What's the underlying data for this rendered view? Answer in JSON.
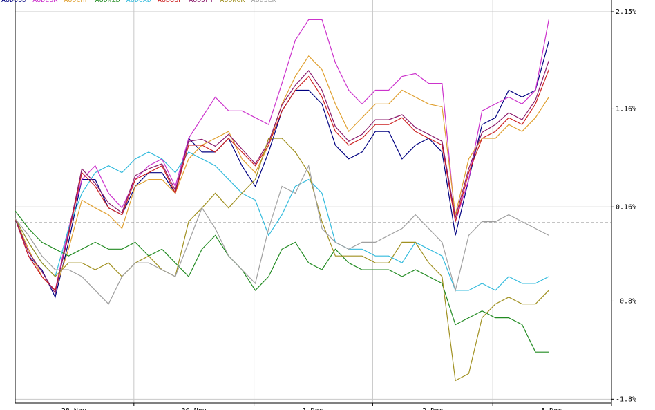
{
  "chart_data": {
    "type": "line",
    "xlim": [
      0,
      44.7
    ],
    "ylim": [
      -1.84,
      2.27
    ],
    "yticks": [
      {
        "value": 2.15,
        "label": "2.15%"
      },
      {
        "value": 1.16,
        "label": "1.16%"
      },
      {
        "value": 0.16,
        "label": "0.16%"
      },
      {
        "value": -0.8,
        "label": "-0.8%"
      },
      {
        "value": -1.8,
        "label": "-1.8%"
      }
    ],
    "xticks": [
      {
        "value": 8.9,
        "label": "28 Nov"
      },
      {
        "value": 17.9,
        "label": "30 Nov"
      },
      {
        "value": 26.8,
        "label": "1 Dec"
      },
      {
        "value": 35.8,
        "label": "2 Dec"
      },
      {
        "value": 44.7,
        "label": "5 Dec"
      }
    ],
    "grid": true,
    "baseline": 0,
    "series": [
      {
        "name": "AUDUSD",
        "color": "#000080",
        "values": [
          0.04,
          -0.34,
          -0.48,
          -0.76,
          -0.2,
          0.44,
          0.44,
          0.15,
          0.08,
          0.37,
          0.51,
          0.51,
          0.3,
          0.86,
          0.72,
          0.72,
          0.86,
          0.58,
          0.37,
          0.72,
          1.14,
          1.35,
          1.35,
          1.21,
          0.79,
          0.65,
          0.72,
          0.93,
          0.93,
          0.65,
          0.79,
          0.86,
          0.72,
          -0.13,
          0.44,
          1.0,
          1.07,
          1.35,
          1.28,
          1.35,
          1.85
        ]
      },
      {
        "name": "AUDEUR",
        "color": "#cc33cc",
        "values": [
          0.04,
          -0.34,
          -0.55,
          -0.69,
          -0.06,
          0.44,
          0.58,
          0.3,
          0.15,
          0.44,
          0.58,
          0.65,
          0.37,
          0.86,
          1.07,
          1.28,
          1.14,
          1.14,
          1.07,
          1.0,
          1.42,
          1.86,
          2.07,
          2.07,
          1.63,
          1.35,
          1.21,
          1.35,
          1.35,
          1.49,
          1.52,
          1.42,
          1.42,
          0.01,
          0.44,
          1.14,
          1.21,
          1.28,
          1.21,
          1.35,
          2.07
        ]
      },
      {
        "name": "AUDCHF",
        "color": "#e0a030",
        "values": [
          0.04,
          -0.27,
          -0.55,
          -0.69,
          -0.27,
          0.23,
          0.15,
          0.08,
          -0.06,
          0.37,
          0.44,
          0.44,
          0.3,
          0.65,
          0.79,
          0.86,
          0.93,
          0.65,
          0.51,
          0.79,
          1.21,
          1.49,
          1.7,
          1.56,
          1.21,
          0.93,
          1.07,
          1.21,
          1.21,
          1.35,
          1.28,
          1.21,
          1.18,
          0.08,
          0.65,
          0.86,
          0.86,
          1.0,
          0.93,
          1.07,
          1.28
        ]
      },
      {
        "name": "AUDNZD",
        "color": "#228b22",
        "values": [
          0.12,
          -0.06,
          -0.2,
          -0.27,
          -0.34,
          -0.27,
          -0.2,
          -0.27,
          -0.27,
          -0.2,
          -0.34,
          -0.27,
          -0.41,
          -0.55,
          -0.27,
          -0.13,
          -0.34,
          -0.48,
          -0.69,
          -0.55,
          -0.27,
          -0.2,
          -0.41,
          -0.48,
          -0.27,
          -0.41,
          -0.48,
          -0.48,
          -0.48,
          -0.55,
          -0.48,
          -0.55,
          -0.62,
          -1.04,
          -0.97,
          -0.9,
          -0.97,
          -0.97,
          -1.04,
          -1.32,
          -1.32
        ]
      },
      {
        "name": "AUDCAD",
        "color": "#33bbdd",
        "values": [
          0.04,
          -0.2,
          -0.41,
          -0.55,
          -0.06,
          0.3,
          0.51,
          0.58,
          0.51,
          0.65,
          0.72,
          0.65,
          0.51,
          0.72,
          0.65,
          0.58,
          0.44,
          0.3,
          0.23,
          -0.13,
          0.08,
          0.37,
          0.44,
          0.3,
          -0.2,
          -0.27,
          -0.27,
          -0.34,
          -0.34,
          -0.41,
          -0.2,
          -0.27,
          -0.34,
          -0.69,
          -0.69,
          -0.62,
          -0.69,
          -0.55,
          -0.62,
          -0.62,
          -0.55
        ]
      },
      {
        "name": "AUDGBP",
        "color": "#cc2222",
        "values": [
          0.04,
          -0.34,
          -0.55,
          -0.69,
          -0.13,
          0.51,
          0.37,
          0.15,
          0.08,
          0.44,
          0.51,
          0.58,
          0.3,
          0.79,
          0.79,
          0.72,
          0.86,
          0.72,
          0.58,
          0.79,
          1.14,
          1.35,
          1.49,
          1.28,
          0.93,
          0.79,
          0.86,
          1.0,
          1.0,
          1.07,
          0.93,
          0.86,
          0.79,
          0.01,
          0.51,
          0.86,
          0.93,
          1.07,
          1.0,
          1.21,
          1.56
        ]
      },
      {
        "name": "AUDJPY",
        "color": "#8b1a6b",
        "values": [
          0.04,
          -0.3,
          -0.5,
          -0.72,
          -0.1,
          0.55,
          0.4,
          0.2,
          0.1,
          0.48,
          0.55,
          0.6,
          0.33,
          0.83,
          0.85,
          0.78,
          0.9,
          0.75,
          0.6,
          0.82,
          1.2,
          1.4,
          1.55,
          1.35,
          0.98,
          0.83,
          0.9,
          1.05,
          1.05,
          1.1,
          0.97,
          0.9,
          0.83,
          0.05,
          0.55,
          0.92,
          1.0,
          1.12,
          1.05,
          1.25,
          1.65
        ]
      },
      {
        "name": "AUDNOK",
        "color": "#a09020",
        "values": [
          0.04,
          -0.2,
          -0.41,
          -0.55,
          -0.41,
          -0.41,
          -0.48,
          -0.41,
          -0.55,
          -0.41,
          -0.34,
          -0.48,
          -0.55,
          0.01,
          0.15,
          0.3,
          0.15,
          0.3,
          0.44,
          0.86,
          0.86,
          0.72,
          0.51,
          0.01,
          -0.34,
          -0.34,
          -0.34,
          -0.41,
          -0.41,
          -0.2,
          -0.2,
          -0.41,
          -0.55,
          -1.61,
          -1.54,
          -0.97,
          -0.83,
          -0.76,
          -0.83,
          -0.83,
          -0.69
        ]
      },
      {
        "name": "AUDSEK",
        "color": "#a0a0a0",
        "values": [
          0.04,
          -0.13,
          -0.34,
          -0.48,
          -0.48,
          -0.55,
          -0.69,
          -0.83,
          -0.55,
          -0.41,
          -0.41,
          -0.48,
          -0.55,
          -0.2,
          0.15,
          -0.06,
          -0.34,
          -0.48,
          -0.62,
          -0.06,
          0.37,
          0.3,
          0.58,
          -0.06,
          -0.2,
          -0.27,
          -0.2,
          -0.2,
          -0.13,
          -0.06,
          0.08,
          -0.06,
          -0.2,
          -0.69,
          -0.13,
          0.01,
          0.01,
          0.08,
          0.01,
          -0.06,
          -0.13
        ]
      }
    ]
  }
}
